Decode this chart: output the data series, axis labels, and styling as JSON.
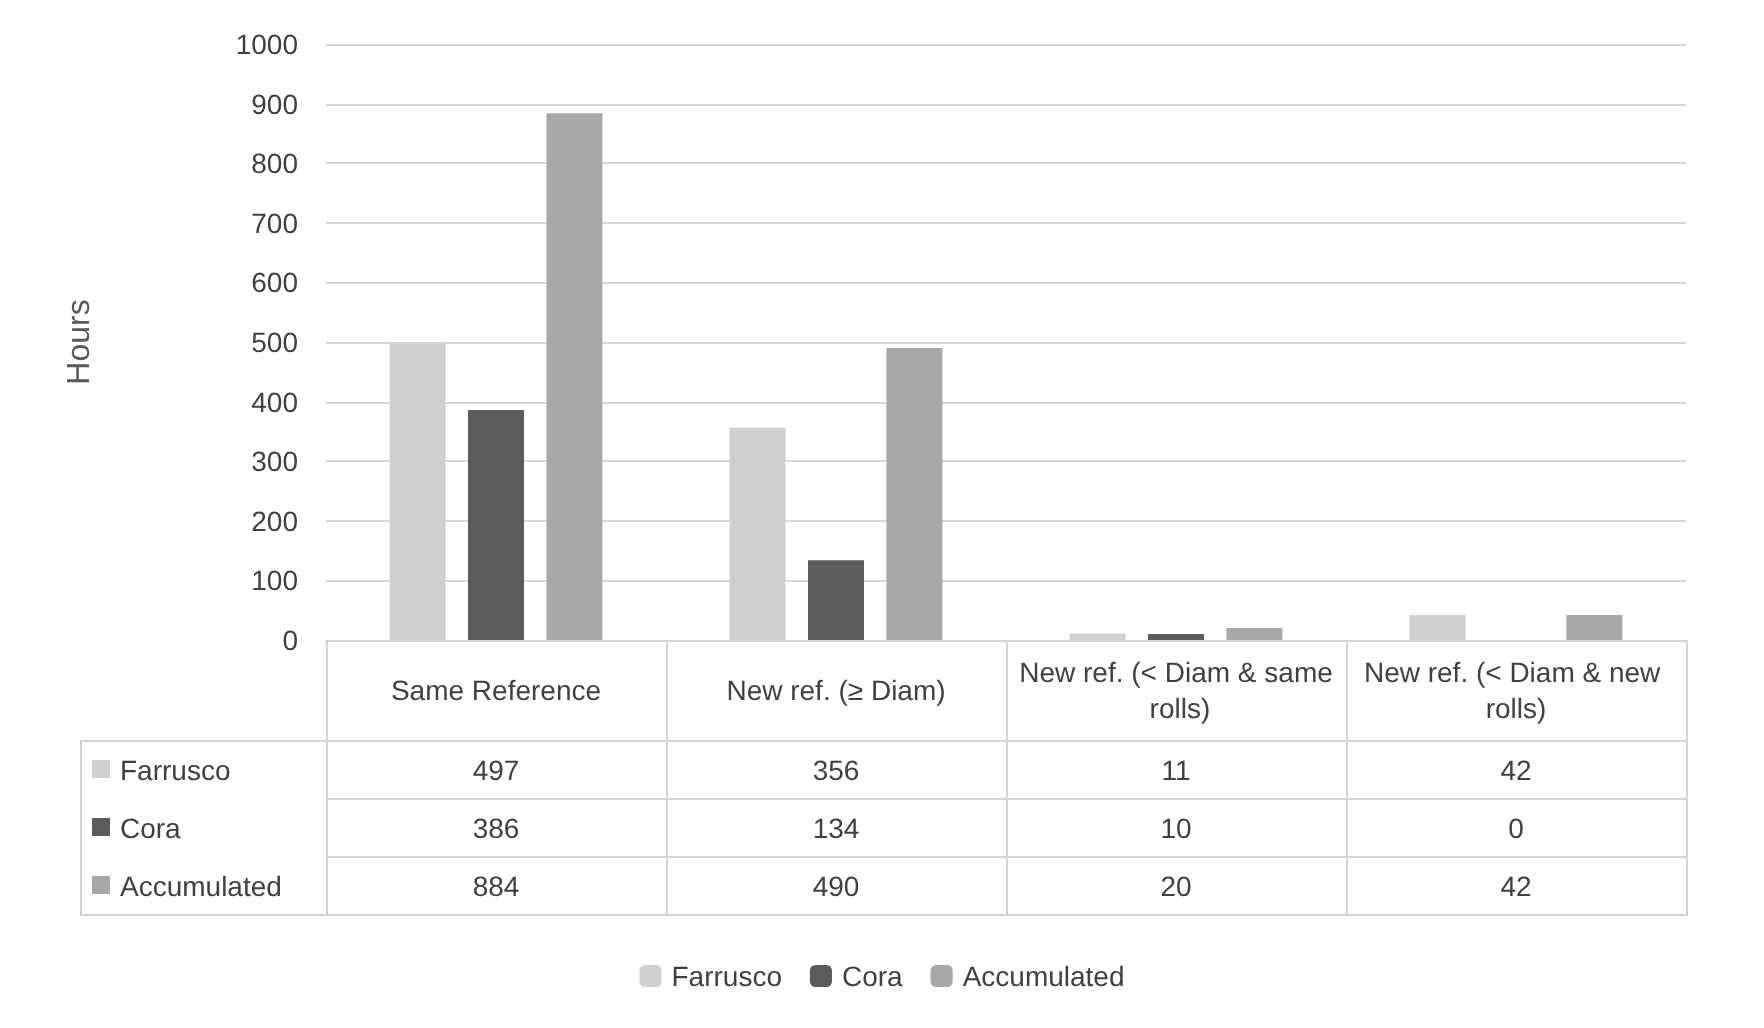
{
  "chart_data": {
    "type": "bar",
    "ylabel": "Hours",
    "categories": [
      "Same Reference",
      "New ref. (≥ Diam)",
      "New ref. (< Diam & same rolls)",
      "New ref. (< Diam & new rolls)"
    ],
    "series": [
      {
        "name": "Farrusco",
        "color": "#d0d0d0",
        "values": [
          497,
          356,
          11,
          42
        ]
      },
      {
        "name": "Cora",
        "color": "#5b5b5b",
        "values": [
          386,
          134,
          10,
          0
        ]
      },
      {
        "name": "Accumulated",
        "color": "#a8a8a8",
        "values": [
          884,
          490,
          20,
          42
        ]
      }
    ],
    "ylim": [
      0,
      1000
    ],
    "yticks": [
      0,
      100,
      200,
      300,
      400,
      500,
      600,
      700,
      800,
      900,
      1000
    ],
    "grid": "y",
    "legend": "bottom",
    "data_labels": true
  }
}
